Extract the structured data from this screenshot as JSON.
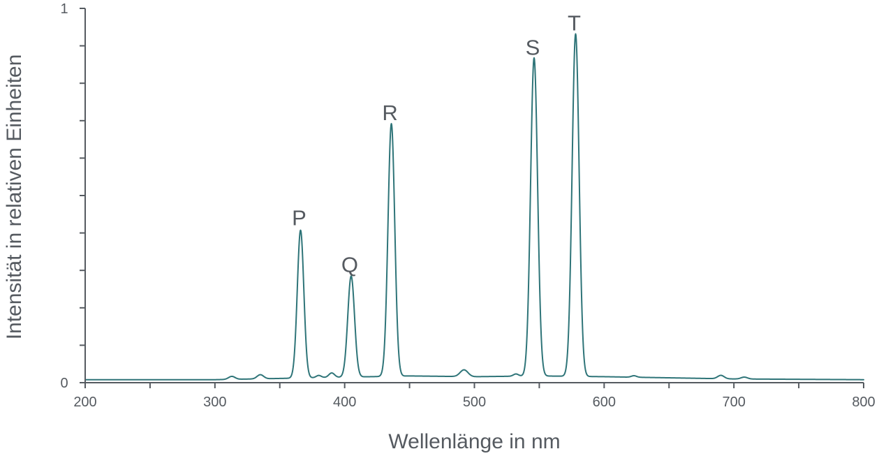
{
  "chart_data": {
    "type": "line",
    "title": "",
    "xlabel": "Wellenlänge in nm",
    "ylabel": "Intensität in relativen Einheiten",
    "xlim": [
      200,
      800
    ],
    "ylim": [
      0,
      1
    ],
    "x_ticks": [
      200,
      300,
      400,
      500,
      600,
      700,
      800
    ],
    "x_tick_labels": [
      "200",
      "300",
      "400",
      "500",
      "600",
      "700",
      "800"
    ],
    "y_tick_labels": [
      "0",
      "1"
    ],
    "y_minor_ticks": [
      0.1,
      0.2,
      0.3,
      0.4,
      0.5,
      0.6,
      0.7,
      0.8,
      0.9
    ],
    "x_minor_ticks": [
      250,
      350,
      450,
      550,
      650,
      750
    ],
    "grid": false,
    "line_color": "#2e7478",
    "series": [
      {
        "baseline": [
          [
            200,
            0.008
          ],
          [
            300,
            0.008
          ],
          [
            360,
            0.012
          ],
          [
            420,
            0.016
          ],
          [
            450,
            0.018
          ],
          [
            500,
            0.016
          ],
          [
            550,
            0.018
          ],
          [
            600,
            0.016
          ],
          [
            700,
            0.01
          ],
          [
            800,
            0.008
          ]
        ],
        "peaks": [
          {
            "x": 313,
            "height": 0.008,
            "width": 2.5
          },
          {
            "x": 335,
            "height": 0.011,
            "width": 2.5
          },
          {
            "x": 366,
            "height": 0.395,
            "width": 2.5
          },
          {
            "x": 380,
            "height": 0.006,
            "width": 2.0
          },
          {
            "x": 390,
            "height": 0.012,
            "width": 2.2
          },
          {
            "x": 405,
            "height": 0.27,
            "width": 2.6
          },
          {
            "x": 436,
            "height": 0.675,
            "width": 2.6
          },
          {
            "x": 492,
            "height": 0.018,
            "width": 3.0
          },
          {
            "x": 532,
            "height": 0.006,
            "width": 2.0
          },
          {
            "x": 546,
            "height": 0.85,
            "width": 2.7
          },
          {
            "x": 578,
            "height": 0.915,
            "width": 2.7
          },
          {
            "x": 623,
            "height": 0.004,
            "width": 2.0
          },
          {
            "x": 690,
            "height": 0.009,
            "width": 2.5
          },
          {
            "x": 708,
            "height": 0.005,
            "width": 2.5
          }
        ]
      }
    ],
    "annotations": [
      {
        "text": "P",
        "x": 366,
        "y": 0.395
      },
      {
        "text": "Q",
        "x": 405,
        "y": 0.27
      },
      {
        "text": "R",
        "x": 436,
        "y": 0.675
      },
      {
        "text": "S",
        "x": 546,
        "y": 0.85
      },
      {
        "text": "T",
        "x": 578,
        "y": 0.915
      }
    ]
  }
}
